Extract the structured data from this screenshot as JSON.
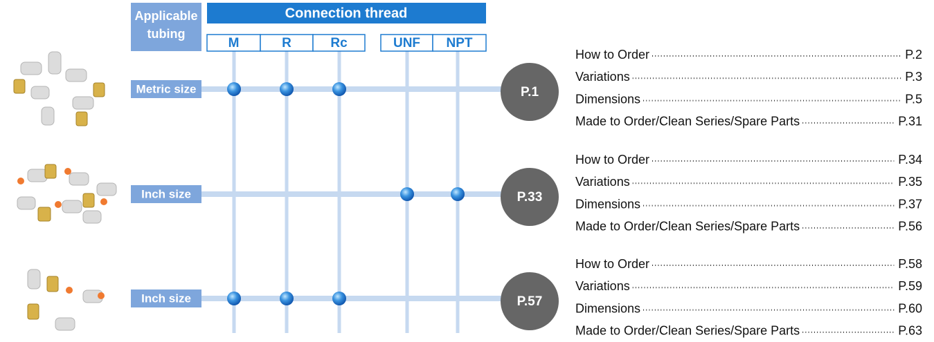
{
  "header": {
    "tubing_label": [
      "Applicable",
      "tubing"
    ],
    "thread_title": "Connection thread",
    "threads": [
      "M",
      "R",
      "Rc",
      "UNF",
      "NPT"
    ]
  },
  "rows": [
    {
      "label": "Metric size",
      "applicable": [
        true,
        true,
        true,
        false,
        false
      ],
      "page": "P.1",
      "contents": [
        {
          "item": "How to Order",
          "page": "P.2"
        },
        {
          "item": "Variations",
          "page": "P.3"
        },
        {
          "item": "Dimensions",
          "page": "P.5"
        },
        {
          "item": "Made to Order/Clean Series/Spare Parts",
          "page": "P.31"
        }
      ]
    },
    {
      "label": "Inch size",
      "applicable": [
        false,
        false,
        false,
        true,
        true
      ],
      "page": "P.33",
      "contents": [
        {
          "item": "How to Order",
          "page": "P.34"
        },
        {
          "item": "Variations",
          "page": "P.35"
        },
        {
          "item": "Dimensions",
          "page": "P.37"
        },
        {
          "item": "Made to Order/Clean Series/Spare Parts",
          "page": "P.56"
        }
      ]
    },
    {
      "label": "Inch size",
      "applicable": [
        true,
        true,
        true,
        false,
        false
      ],
      "page": "P.57",
      "contents": [
        {
          "item": "How to Order",
          "page": "P.58"
        },
        {
          "item": "Variations",
          "page": "P.59"
        },
        {
          "item": "Dimensions",
          "page": "P.60"
        },
        {
          "item": "Made to Order/Clean Series/Spare Parts",
          "page": "P.63"
        }
      ]
    }
  ]
}
